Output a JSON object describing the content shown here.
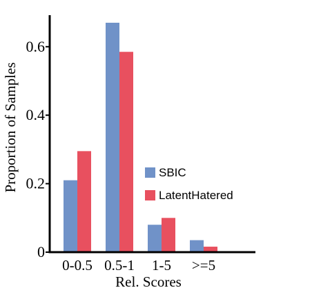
{
  "chart_data": {
    "type": "bar",
    "categories": [
      "0-0.5",
      "0.5-1",
      "1-5",
      ">=5"
    ],
    "series": [
      {
        "name": "SBIC",
        "values": [
          0.21,
          0.67,
          0.08,
          0.035
        ],
        "color": "#7092C8"
      },
      {
        "name": "LatentHatered",
        "values": [
          0.295,
          0.585,
          0.1,
          0.016
        ],
        "color": "#E8505F"
      }
    ],
    "xlabel": "Rel. Scores",
    "ylabel": "Proportion of Samples",
    "ylim": [
      0,
      0.67
    ],
    "yticks": [
      0,
      0.2,
      0.4,
      0.6
    ],
    "ytick_labels": [
      "0",
      "0.2",
      "0.4",
      "0.6"
    ],
    "legend": {
      "placement": "center-right",
      "entries": [
        "SBIC",
        "LatentHatered"
      ]
    },
    "grid": false
  }
}
